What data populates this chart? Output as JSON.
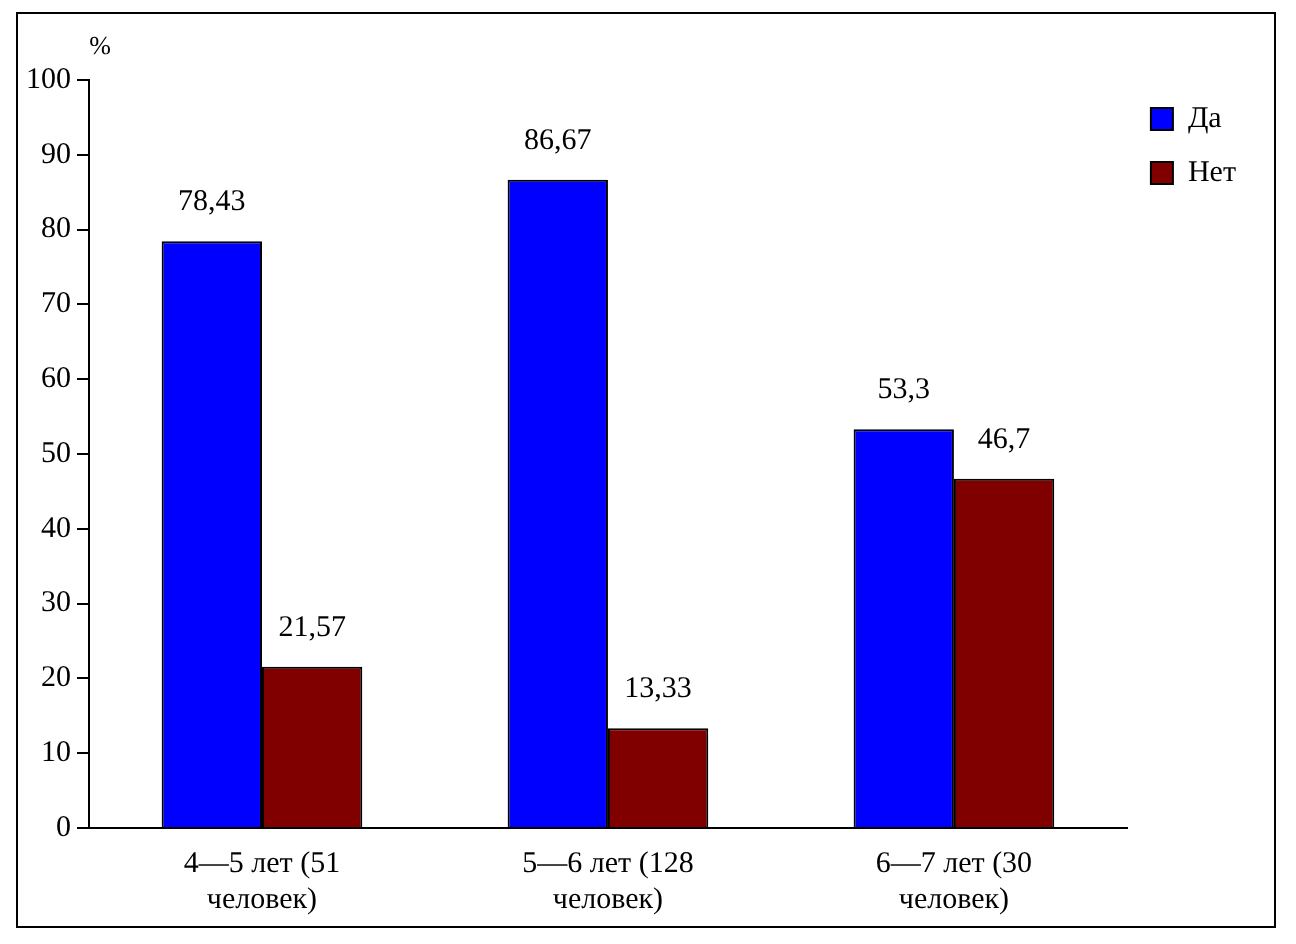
{
  "chart_data": {
    "type": "bar",
    "ylabel": "%",
    "categories": [
      "4—5 лет (51 человек)",
      "5—6 лет (128 человек)",
      "6—7 лет (30 человек)"
    ],
    "series": [
      {
        "name": "Да",
        "color": "#0000ff",
        "values": [
          78.43,
          86.67,
          53.3
        ],
        "value_labels": [
          "78,43",
          "86,67",
          "53,3"
        ]
      },
      {
        "name": "Нет",
        "color": "#800000",
        "values": [
          21.57,
          13.33,
          46.7
        ],
        "value_labels": [
          "21,57",
          "13,33",
          "46,7"
        ]
      }
    ],
    "ylim": [
      0,
      100
    ],
    "yticks": [
      0,
      10,
      20,
      30,
      40,
      50,
      60,
      70,
      80,
      90,
      100
    ],
    "grid": false,
    "legend": "top right"
  }
}
